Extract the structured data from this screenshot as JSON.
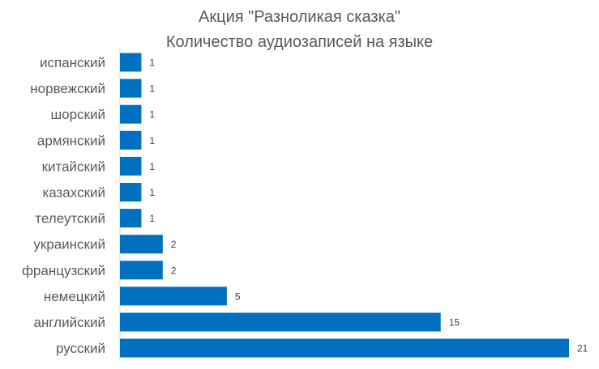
{
  "chart_data": {
    "type": "bar",
    "orientation": "horizontal",
    "title": "Акция \"Разноликая сказка\"",
    "subtitle": "Количество аудиозаписей на языке",
    "categories": [
      "испанский",
      "норвежский",
      "шорский",
      "армянский",
      "китайский",
      "казахский",
      "телеутский",
      "украинский",
      "французский ",
      "немецкий",
      "английский",
      "русский"
    ],
    "values": [
      1,
      1,
      1,
      1,
      1,
      1,
      1,
      2,
      2,
      5,
      15,
      21
    ],
    "xlim": [
      0,
      21
    ],
    "grid": false,
    "data_labels": true,
    "bar_color": "#0070C0"
  }
}
